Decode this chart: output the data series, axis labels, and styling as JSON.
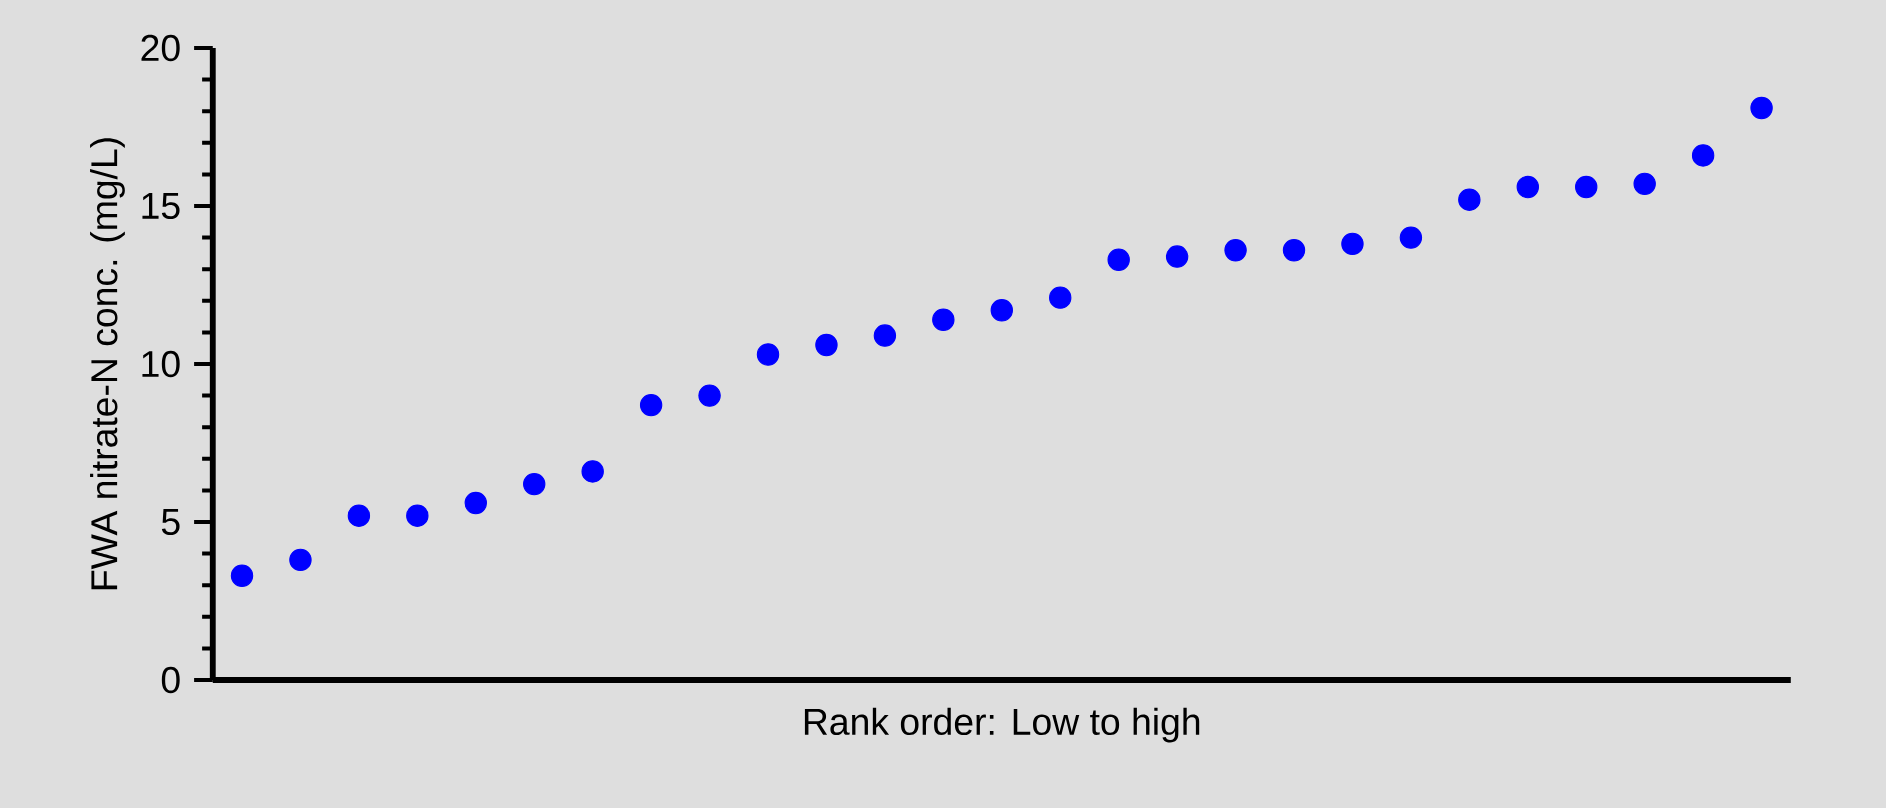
{
  "chart_data": {
    "type": "scatter",
    "xlabel": "Rank order: Low to high",
    "ylabel": "FWA nitrate-N conc. (mg/L)",
    "categories": [
      null,
      null,
      null,
      null,
      null,
      null,
      null,
      null,
      null,
      null,
      null,
      null,
      null,
      null,
      null,
      null,
      null,
      null,
      null,
      null,
      null,
      null,
      null,
      null,
      null,
      null,
      null
    ],
    "values": [
      3.3,
      3.8,
      5.2,
      5.2,
      5.6,
      6.2,
      6.6,
      8.7,
      9.0,
      10.3,
      10.6,
      10.9,
      11.4,
      11.7,
      12.1,
      13.3,
      13.4,
      13.6,
      13.6,
      13.8,
      14.0,
      15.2,
      15.6,
      15.6,
      15.7,
      16.6,
      18.1
    ],
    "color": "#0000ff",
    "marker": "circle",
    "ylim": [
      0,
      20
    ],
    "yticks": [
      0,
      5,
      10,
      15,
      20
    ],
    "grid": false,
    "tick_labels": "y"
  }
}
